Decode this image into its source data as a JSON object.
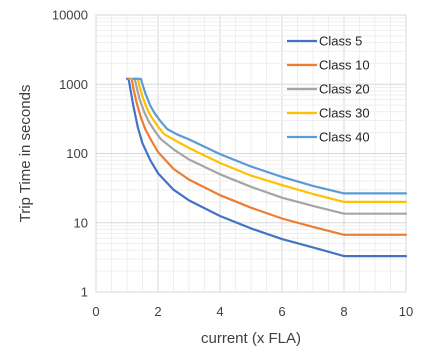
{
  "chart_data": {
    "type": "line",
    "title": "",
    "xlabel": "current (x FLA)",
    "ylabel": "Trip Time in seconds",
    "xlim": [
      0,
      10
    ],
    "ylim": [
      1,
      10000
    ],
    "y_scale": "log",
    "x_ticks": [
      0,
      2,
      4,
      6,
      8,
      10
    ],
    "y_ticks": [
      1,
      10,
      100,
      1000,
      10000
    ],
    "x_tick_labels": [
      "0",
      "2",
      "4",
      "6",
      "8",
      "10"
    ],
    "y_tick_labels": [
      "1",
      "10",
      "100",
      "1000",
      "10000"
    ],
    "grid": true,
    "legend_position": "top-right",
    "series": [
      {
        "name": "Class 5",
        "color": "#4472C4",
        "x": [
          1.0,
          1.05,
          1.1,
          1.2,
          1.35,
          1.5,
          1.75,
          2.0,
          2.5,
          3.0,
          4.0,
          5.0,
          6.0,
          7.0,
          8.0,
          10.0
        ],
        "y": [
          1200,
          1200,
          900,
          500,
          240,
          140,
          80,
          52,
          30,
          21,
          12.5,
          8.3,
          5.8,
          4.4,
          3.3,
          3.3
        ]
      },
      {
        "name": "Class 10",
        "color": "#ED7D31",
        "x": [
          1.05,
          1.15,
          1.2,
          1.3,
          1.45,
          1.6,
          1.8,
          2.0,
          2.5,
          3.0,
          4.0,
          5.0,
          6.0,
          7.0,
          8.0,
          10.0
        ],
        "y": [
          1200,
          1200,
          900,
          560,
          330,
          220,
          150,
          105,
          60,
          42,
          25,
          16.5,
          11.5,
          8.7,
          6.7,
          6.7
        ]
      },
      {
        "name": "Class 20",
        "color": "#A5A5A5",
        "x": [
          1.1,
          1.25,
          1.3,
          1.4,
          1.55,
          1.7,
          1.9,
          2.1,
          2.5,
          3.0,
          4.0,
          5.0,
          6.0,
          7.0,
          8.0,
          10.0
        ],
        "y": [
          1200,
          1200,
          950,
          620,
          400,
          290,
          210,
          160,
          115,
          82,
          50,
          33,
          23,
          17.5,
          13.5,
          13.5
        ]
      },
      {
        "name": "Class 30",
        "color": "#FFC000",
        "x": [
          1.15,
          1.35,
          1.4,
          1.5,
          1.65,
          1.8,
          2.0,
          2.2,
          2.5,
          3.0,
          4.0,
          5.0,
          6.0,
          7.0,
          8.0,
          10.0
        ],
        "y": [
          1200,
          1200,
          950,
          660,
          440,
          330,
          245,
          190,
          160,
          120,
          73,
          48,
          35,
          26,
          20,
          20
        ]
      },
      {
        "name": "Class 40",
        "color": "#5B9BD5",
        "x": [
          1.2,
          1.45,
          1.5,
          1.6,
          1.75,
          1.9,
          2.1,
          2.3,
          2.6,
          3.0,
          4.0,
          5.0,
          6.0,
          7.0,
          8.0,
          10.0
        ],
        "y": [
          1200,
          1200,
          1000,
          720,
          490,
          375,
          285,
          225,
          190,
          160,
          98,
          65,
          46,
          34,
          26.5,
          26.5
        ]
      }
    ]
  }
}
